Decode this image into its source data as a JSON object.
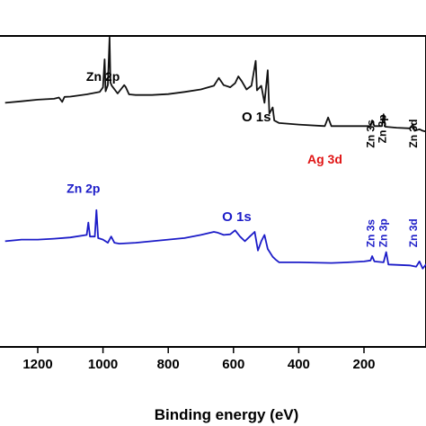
{
  "chart_data": {
    "type": "line",
    "title": "",
    "xlabel": "Binding energy (eV)",
    "ylabel": "",
    "xlim": [
      1300,
      0
    ],
    "x_reversed": true,
    "x_ticks": [
      1200,
      1000,
      800,
      600,
      400,
      200
    ],
    "legend": "none",
    "grid": false,
    "series": [
      {
        "color": "#111111",
        "points": [
          [
            1300,
            0.215
          ],
          [
            1250,
            0.21
          ],
          [
            1200,
            0.205
          ],
          [
            1150,
            0.202
          ],
          [
            1135,
            0.198
          ],
          [
            1125,
            0.212
          ],
          [
            1118,
            0.196
          ],
          [
            1100,
            0.195
          ],
          [
            1050,
            0.188
          ],
          [
            1010,
            0.18
          ],
          [
            1000,
            0.165
          ],
          [
            995,
            0.075
          ],
          [
            992,
            0.178
          ],
          [
            985,
            0.158
          ],
          [
            980,
            0.005
          ],
          [
            977,
            0.15
          ],
          [
            973,
            0.16
          ],
          [
            955,
            0.185
          ],
          [
            935,
            0.158
          ],
          [
            930,
            0.165
          ],
          [
            920,
            0.188
          ],
          [
            900,
            0.19
          ],
          [
            850,
            0.19
          ],
          [
            800,
            0.187
          ],
          [
            750,
            0.18
          ],
          [
            700,
            0.172
          ],
          [
            660,
            0.16
          ],
          [
            645,
            0.135
          ],
          [
            630,
            0.158
          ],
          [
            610,
            0.165
          ],
          [
            595,
            0.152
          ],
          [
            585,
            0.13
          ],
          [
            575,
            0.145
          ],
          [
            560,
            0.172
          ],
          [
            545,
            0.16
          ],
          [
            532,
            0.08
          ],
          [
            528,
            0.175
          ],
          [
            515,
            0.16
          ],
          [
            505,
            0.215
          ],
          [
            495,
            0.11
          ],
          [
            490,
            0.25
          ],
          [
            480,
            0.23
          ],
          [
            475,
            0.272
          ],
          [
            460,
            0.28
          ],
          [
            400,
            0.285
          ],
          [
            320,
            0.29
          ],
          [
            310,
            0.262
          ],
          [
            300,
            0.29
          ],
          [
            250,
            0.29
          ],
          [
            200,
            0.29
          ],
          [
            180,
            0.29
          ],
          [
            175,
            0.272
          ],
          [
            168,
            0.29
          ],
          [
            145,
            0.29
          ],
          [
            140,
            0.252
          ],
          [
            135,
            0.292
          ],
          [
            100,
            0.295
          ],
          [
            60,
            0.297
          ],
          [
            50,
            0.285
          ],
          [
            45,
            0.305
          ],
          [
            30,
            0.3
          ],
          [
            20,
            0.305
          ],
          [
            0,
            0.31
          ]
        ]
      },
      {
        "color": "#1c1cc8",
        "points": [
          [
            1300,
            0.66
          ],
          [
            1250,
            0.655
          ],
          [
            1200,
            0.655
          ],
          [
            1150,
            0.652
          ],
          [
            1100,
            0.648
          ],
          [
            1050,
            0.64
          ],
          [
            1045,
            0.6
          ],
          [
            1040,
            0.645
          ],
          [
            1025,
            0.645
          ],
          [
            1020,
            0.56
          ],
          [
            1015,
            0.65
          ],
          [
            1000,
            0.655
          ],
          [
            985,
            0.665
          ],
          [
            975,
            0.645
          ],
          [
            965,
            0.665
          ],
          [
            950,
            0.668
          ],
          [
            900,
            0.665
          ],
          [
            850,
            0.66
          ],
          [
            800,
            0.655
          ],
          [
            750,
            0.65
          ],
          [
            700,
            0.64
          ],
          [
            660,
            0.63
          ],
          [
            650,
            0.632
          ],
          [
            630,
            0.64
          ],
          [
            610,
            0.638
          ],
          [
            595,
            0.625
          ],
          [
            580,
            0.645
          ],
          [
            565,
            0.66
          ],
          [
            550,
            0.645
          ],
          [
            535,
            0.63
          ],
          [
            525,
            0.69
          ],
          [
            515,
            0.66
          ],
          [
            505,
            0.64
          ],
          [
            495,
            0.685
          ],
          [
            480,
            0.71
          ],
          [
            470,
            0.72
          ],
          [
            460,
            0.728
          ],
          [
            400,
            0.728
          ],
          [
            300,
            0.73
          ],
          [
            250,
            0.728
          ],
          [
            200,
            0.725
          ],
          [
            180,
            0.722
          ],
          [
            175,
            0.708
          ],
          [
            168,
            0.725
          ],
          [
            140,
            0.728
          ],
          [
            132,
            0.695
          ],
          [
            125,
            0.735
          ],
          [
            60,
            0.738
          ],
          [
            40,
            0.742
          ],
          [
            30,
            0.725
          ],
          [
            20,
            0.748
          ],
          [
            10,
            0.735
          ],
          [
            0,
            0.75
          ]
        ]
      }
    ],
    "annotations": [
      {
        "text": "Zn 2p",
        "x": 1000,
        "y": 0.145,
        "color": "#000000",
        "rotate": 0,
        "size": 14
      },
      {
        "text": "O 1s",
        "x": 530,
        "y": 0.275,
        "color": "#000000",
        "rotate": 0,
        "size": 15
      },
      {
        "text": "Ag 3d",
        "x": 320,
        "y": 0.41,
        "color": "#e01414",
        "rotate": 0,
        "size": 14
      },
      {
        "text": "Zn 3s",
        "x": 168,
        "y": 0.36,
        "color": "#000000",
        "rotate": -90,
        "size": 12
      },
      {
        "text": "Zn 3p",
        "x": 132,
        "y": 0.345,
        "color": "#000000",
        "rotate": -90,
        "size": 12
      },
      {
        "text": "Zn 3d",
        "x": 38,
        "y": 0.36,
        "color": "#000000",
        "rotate": -90,
        "size": 12
      },
      {
        "text": "Zn 2p",
        "x": 1060,
        "y": 0.505,
        "color": "#1c1cc8",
        "rotate": 0,
        "size": 14
      },
      {
        "text": "O 1s",
        "x": 590,
        "y": 0.595,
        "color": "#1c1cc8",
        "rotate": 0,
        "size": 15
      },
      {
        "text": "Zn 3s",
        "x": 168,
        "y": 0.68,
        "color": "#1c1cc8",
        "rotate": -90,
        "size": 12
      },
      {
        "text": "Zn 3p",
        "x": 130,
        "y": 0.68,
        "color": "#1c1cc8",
        "rotate": -90,
        "size": 12
      },
      {
        "text": "Zn 3d",
        "x": 38,
        "y": 0.68,
        "color": "#1c1cc8",
        "rotate": -90,
        "size": 12
      }
    ]
  }
}
